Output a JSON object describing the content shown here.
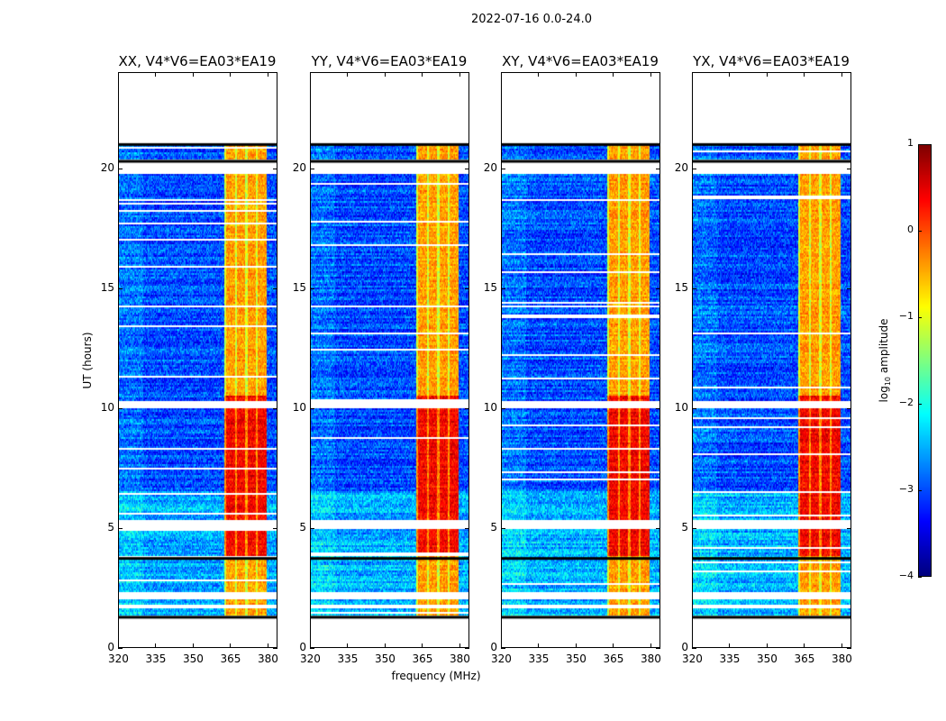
{
  "chart_data": {
    "type": "heatmap",
    "title": "2022-07-16 0.0-24.0",
    "xlabel": "frequency (MHz)",
    "ylabel": "UT (hours)",
    "xlim": [
      320,
      384
    ],
    "ylim": [
      0,
      24
    ],
    "xticks": [
      "320",
      "335",
      "350",
      "365",
      "380"
    ],
    "yticks": [
      "0",
      "5",
      "10",
      "15",
      "20"
    ],
    "panels": [
      {
        "title": "XX, V4*V6=EA03*EA19"
      },
      {
        "title": "YY, V4*V6=EA03*EA19"
      },
      {
        "title": "XY, V4*V6=EA03*EA19"
      },
      {
        "title": "YX, V4*V6=EA03*EA19"
      }
    ],
    "data_time_range": [
      1.3,
      21.0
    ],
    "rfi_band_mhz": [
      363,
      380
    ],
    "background_log_amplitude": -3.0,
    "band_log_amplitude_day": -0.4,
    "band_log_amplitude_3p8_to_10p5h": 0.4,
    "gaps_hours": [
      [
        1.6,
        1.75
      ],
      [
        2.0,
        2.3
      ],
      [
        4.95,
        5.3
      ],
      [
        9.95,
        10.25
      ],
      [
        19.75,
        20.35
      ]
    ],
    "flag_lines_hours": [
      1.3,
      3.75,
      20.3,
      21.0
    ],
    "colorbar": {
      "label": "log10 amplitude",
      "label_main": "log",
      "label_sub": "10",
      "label_rest": " amplitude",
      "range": [
        -4,
        1
      ],
      "ticks": [
        "1",
        "0",
        "−1",
        "−2",
        "−3",
        "−4"
      ],
      "colormap": "jet"
    }
  }
}
